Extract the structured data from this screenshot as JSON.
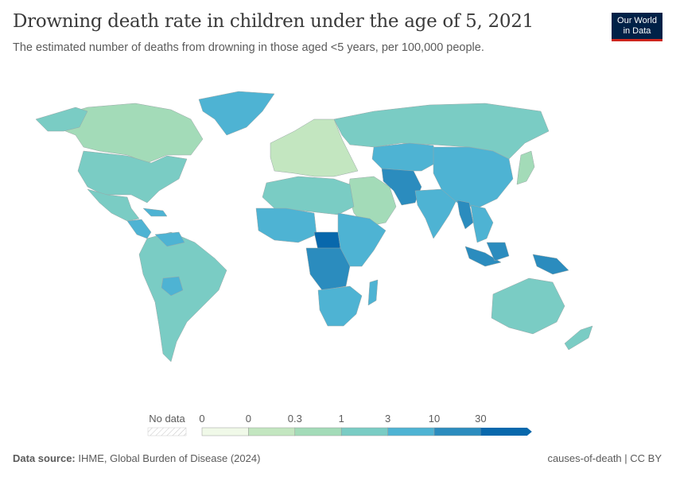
{
  "title": "Drowning death rate in children under the age of 5, 2021",
  "subtitle": "The estimated number of deaths from drowning in those aged <5 years, per 100,000 people.",
  "logo": {
    "line1": "Our World",
    "line2": "in Data"
  },
  "legend": {
    "no_data_label": "No data",
    "tick_labels": [
      "0",
      "0",
      "0.3",
      "1",
      "3",
      "10",
      "30"
    ],
    "bins": [
      {
        "color": "#f0f9e8"
      },
      {
        "color": "#c3e6c0"
      },
      {
        "color": "#a3dbb8"
      },
      {
        "color": "#7accc4"
      },
      {
        "color": "#4eb3d3"
      },
      {
        "color": "#2b8cbe"
      },
      {
        "color": "#0868ac"
      }
    ]
  },
  "regions": {
    "north_america": "#7accc4",
    "canada": "#a3dbb8",
    "greenland": "#4eb3d3",
    "mexico": "#7accc4",
    "central_america": "#4eb3d3",
    "south_america": "#7accc4",
    "bolivia": "#4eb3d3",
    "europe": "#c3e6c0",
    "russia": "#7accc4",
    "north_africa": "#7accc4",
    "west_africa": "#4eb3d3",
    "central_africa": "#2b8cbe",
    "chad_car": "#0868ac",
    "east_africa": "#4eb3d3",
    "southern_africa": "#4eb3d3",
    "middle_east": "#a3dbb8",
    "central_asia": "#4eb3d3",
    "south_asia": "#4eb3d3",
    "afghanistan_pakistan": "#2b8cbe",
    "china": "#4eb3d3",
    "southeast_asia": "#4eb3d3",
    "myanmar": "#2b8cbe",
    "indonesia": "#2b8cbe",
    "japan": "#a3dbb8",
    "australia": "#7accc4",
    "new_zealand": "#7accc4",
    "madagascar": "#4eb3d3"
  },
  "footer": {
    "source_label": "Data source:",
    "source_text": "IHME, Global Burden of Disease (2024)",
    "right_text": "causes-of-death | CC BY"
  }
}
